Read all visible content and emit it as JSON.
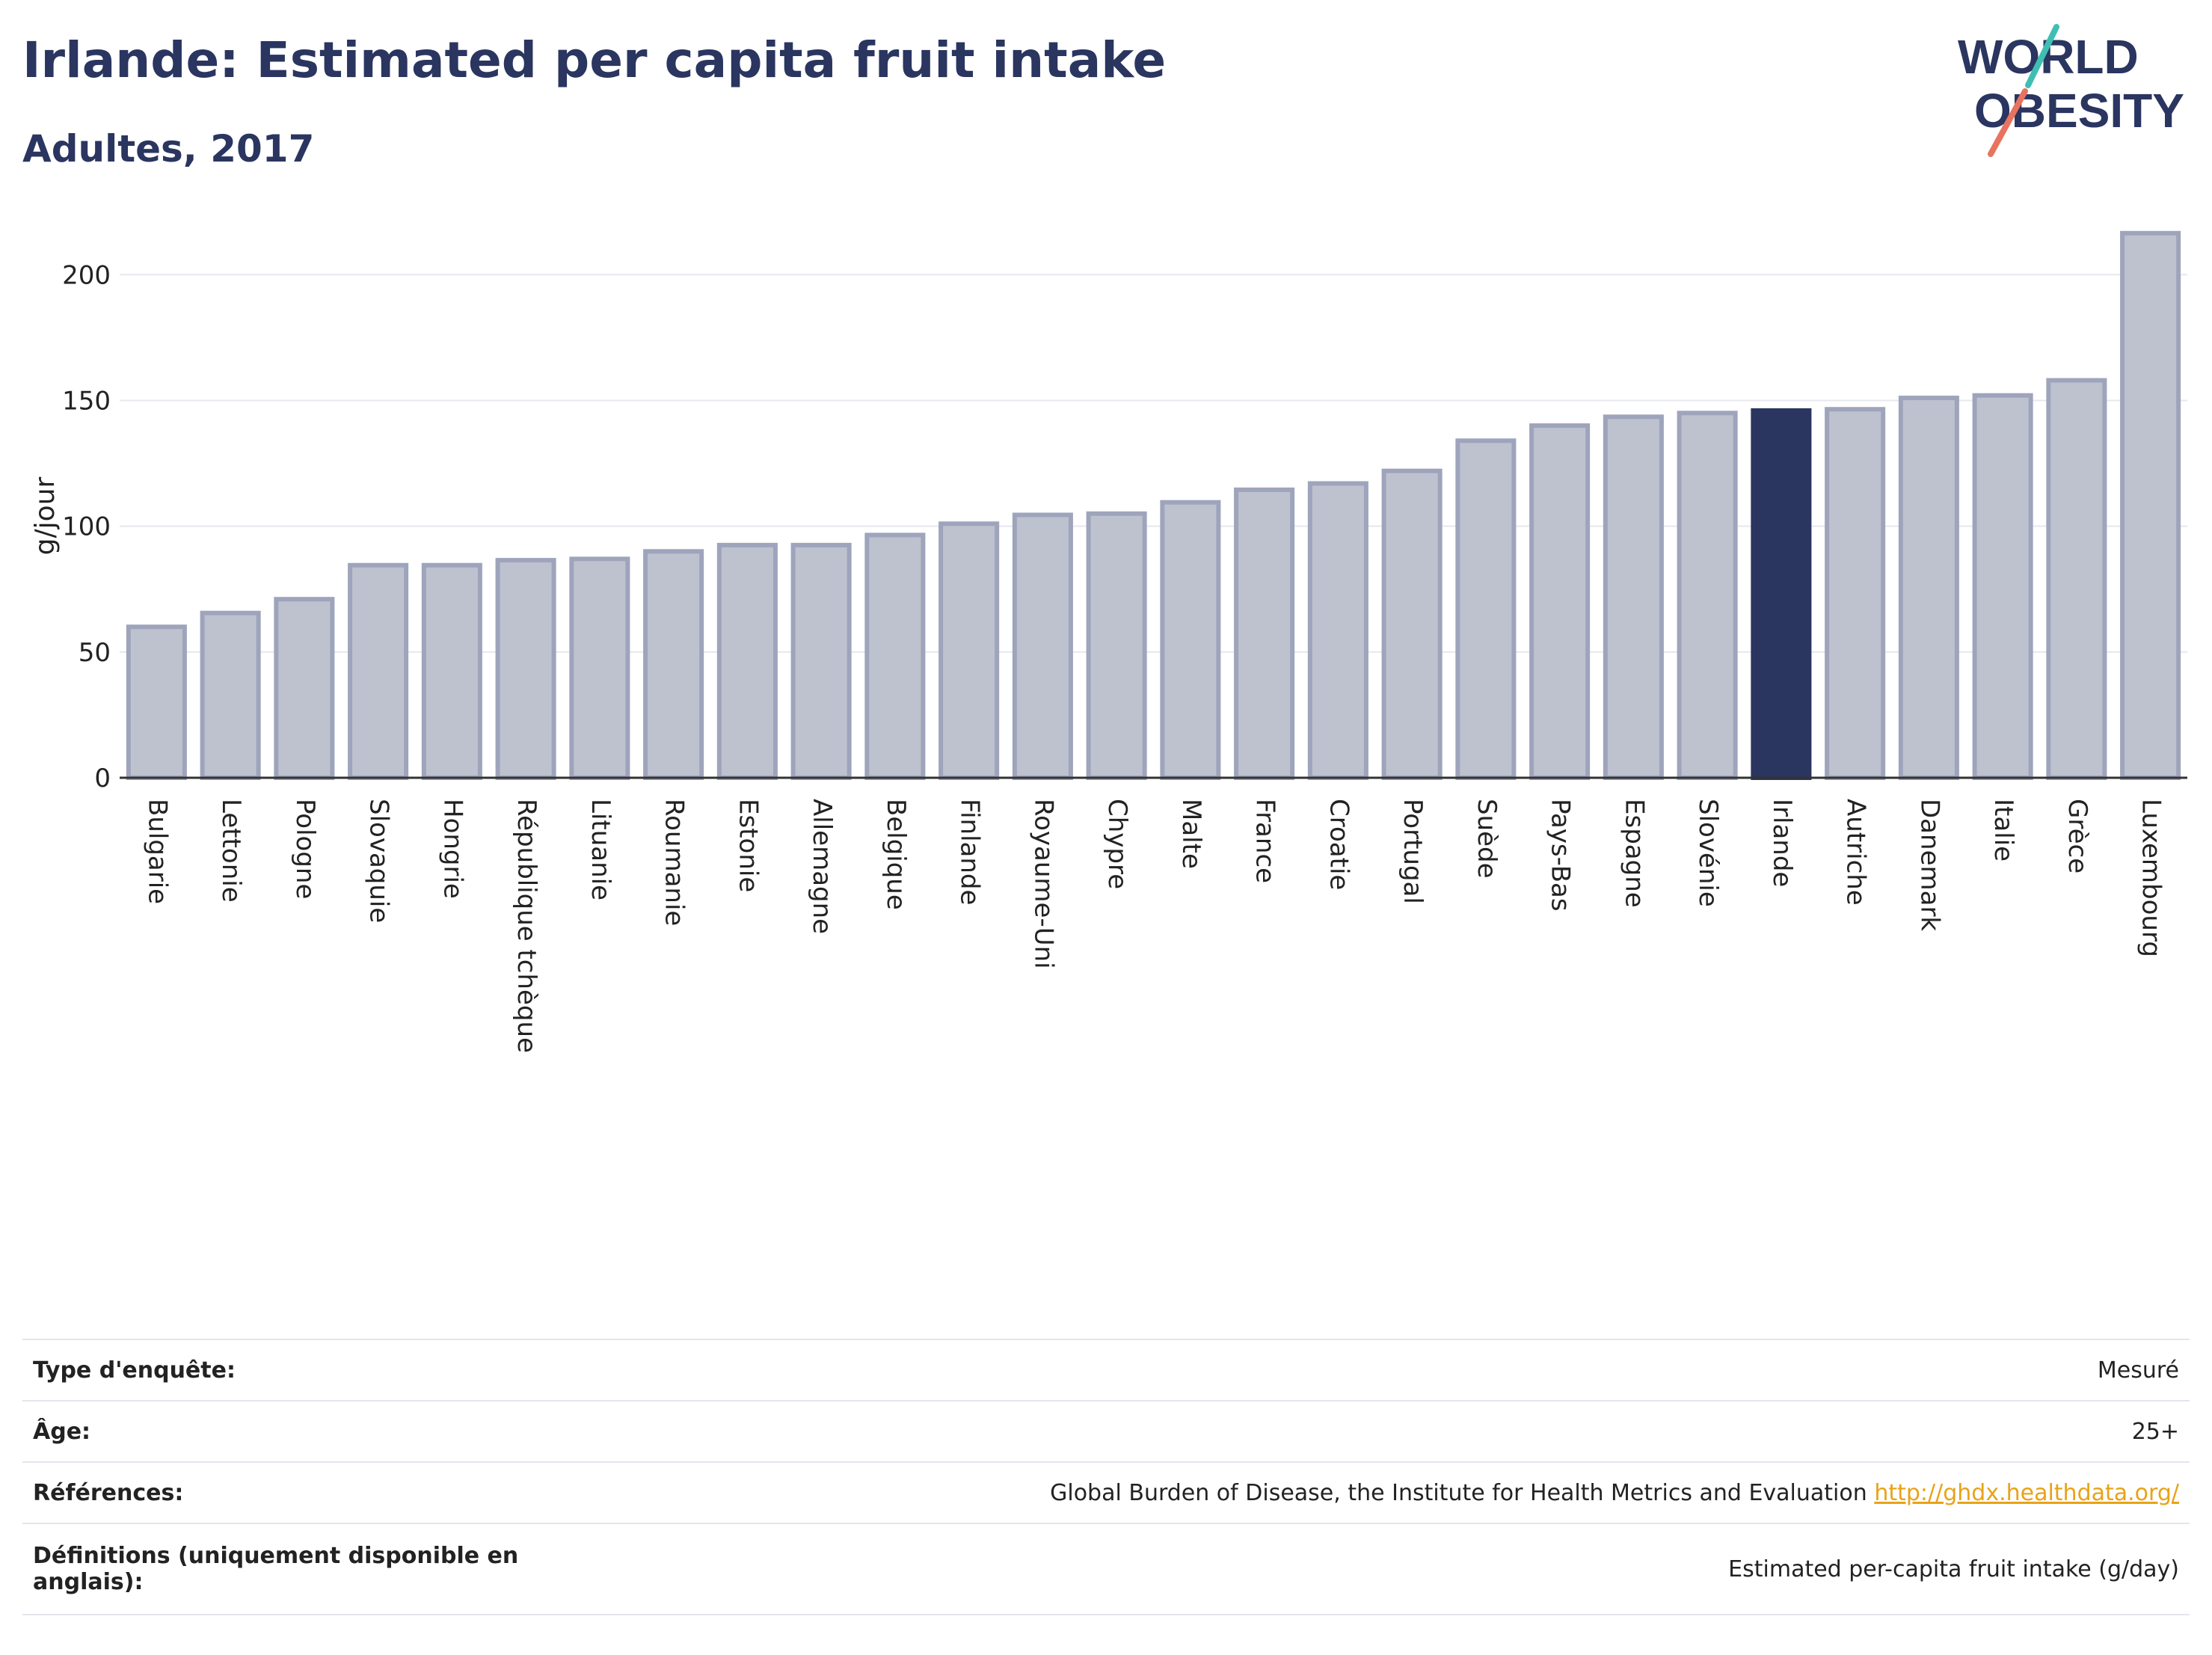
{
  "header": {
    "title": "Irlande: Estimated per capita fruit intake",
    "subtitle": "Adultes, 2017"
  },
  "logo": {
    "line1": "WORLD",
    "line2": "OBESITY"
  },
  "colors": {
    "highlight": "#2a3560",
    "bar_fill": "#bec2cf",
    "bar_stroke": "#9ea4bb",
    "grid": "#e6e8ee",
    "logo_teal": "#3fbfb3",
    "logo_coral": "#e8735e"
  },
  "chart_data": {
    "type": "bar",
    "ylabel": "g/jour",
    "ylim": [
      0,
      220
    ],
    "yticks": [
      0,
      50,
      100,
      150,
      200
    ],
    "grid": true,
    "highlight": "Irlande",
    "categories": [
      "Bulgarie",
      "Lettonie",
      "Pologne",
      "Slovaquie",
      "Hongrie",
      "République tchèque",
      "Lituanie",
      "Roumanie",
      "Estonie",
      "Allemagne",
      "Belgique",
      "Finlande",
      "Royaume-Uni",
      "Chypre",
      "Malte",
      "France",
      "Croatie",
      "Portugal",
      "Suède",
      "Pays-Bas",
      "Espagne",
      "Slovénie",
      "Irlande",
      "Autriche",
      "Danemark",
      "Italie",
      "Grèce",
      "Luxembourg"
    ],
    "values": [
      60,
      65.5,
      71,
      84.5,
      84.5,
      86.5,
      87,
      90,
      92.5,
      92.5,
      96.5,
      101,
      104.5,
      105,
      109.5,
      114.5,
      117,
      122,
      134,
      140,
      143.5,
      145,
      146,
      146.5,
      151,
      152,
      158,
      216.5
    ]
  },
  "info": [
    {
      "key": "Type d'enquête:",
      "value": "Mesuré"
    },
    {
      "key": "Âge:",
      "value": "25+"
    },
    {
      "key": "Références:",
      "value": "Global Burden of Disease, the Institute for Health Metrics and Evaluation",
      "link": "http://ghdx.healthdata.org/"
    },
    {
      "key": "Définitions (uniquement disponible en anglais):",
      "value": "Estimated per-capita fruit intake (g/day)"
    }
  ]
}
